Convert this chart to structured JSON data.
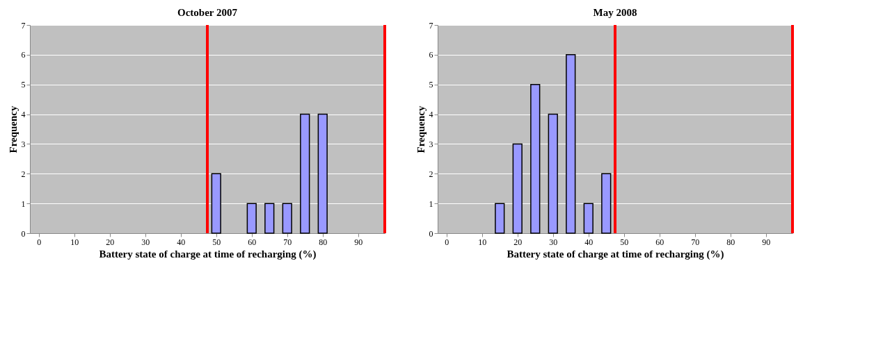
{
  "chart_data": [
    {
      "type": "bar",
      "title": "October 2007",
      "xlabel": "Battery state of charge at time of recharging (%)",
      "ylabel": "Frequency",
      "x": [
        50,
        60,
        65,
        70,
        75,
        80
      ],
      "series": [
        {
          "color": "#9999ff",
          "values": [
            2,
            1,
            1,
            1,
            4,
            4
          ]
        }
      ],
      "xlim": [
        -2.5,
        97.5
      ],
      "xticks": [
        0,
        10,
        20,
        30,
        40,
        50,
        60,
        70,
        80,
        90
      ],
      "ylim": [
        0,
        7
      ],
      "yticks": [
        0,
        1,
        2,
        3,
        4,
        5,
        6,
        7
      ],
      "grid": "y",
      "ref_lines": [
        {
          "axis": "x",
          "value": 47.5,
          "color": "#ff0000"
        },
        {
          "axis": "x",
          "value": 97.5,
          "color": "#ff0000"
        }
      ]
    },
    {
      "type": "bar",
      "title": "May 2008",
      "xlabel": "Battery state of charge at time of recharging (%)",
      "ylabel": "Frequency",
      "x": [
        15,
        20,
        25,
        30,
        35,
        40,
        45
      ],
      "series": [
        {
          "color": "#9999ff",
          "values": [
            1,
            3,
            5,
            4,
            6,
            1,
            2
          ]
        }
      ],
      "xlim": [
        -2.5,
        97.5
      ],
      "xticks": [
        0,
        10,
        20,
        30,
        40,
        50,
        60,
        70,
        80,
        90
      ],
      "ylim": [
        0,
        7
      ],
      "yticks": [
        0,
        1,
        2,
        3,
        4,
        5,
        6,
        7
      ],
      "grid": "y",
      "ref_lines": [
        {
          "axis": "x",
          "value": 47.5,
          "color": "#ff0000"
        },
        {
          "axis": "x",
          "value": 97.5,
          "color": "#ff0000"
        }
      ]
    }
  ]
}
